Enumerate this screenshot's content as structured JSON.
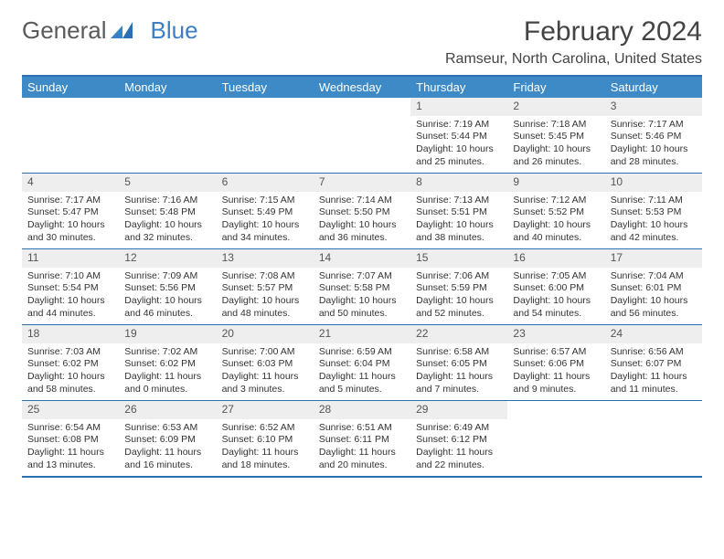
{
  "brand": {
    "part1": "General",
    "part2": "Blue"
  },
  "title": "February 2024",
  "location": "Ramseur, North Carolina, United States",
  "colors": {
    "header_bg": "#3d8ac7",
    "border": "#2d6fb3",
    "daynum_bg": "#eeeeee",
    "text": "#333333"
  },
  "day_headers": [
    "Sunday",
    "Monday",
    "Tuesday",
    "Wednesday",
    "Thursday",
    "Friday",
    "Saturday"
  ],
  "weeks": [
    [
      {
        "empty": true
      },
      {
        "empty": true
      },
      {
        "empty": true
      },
      {
        "empty": true
      },
      {
        "num": "1",
        "sunrise": "Sunrise: 7:19 AM",
        "sunset": "Sunset: 5:44 PM",
        "daylight": "Daylight: 10 hours and 25 minutes."
      },
      {
        "num": "2",
        "sunrise": "Sunrise: 7:18 AM",
        "sunset": "Sunset: 5:45 PM",
        "daylight": "Daylight: 10 hours and 26 minutes."
      },
      {
        "num": "3",
        "sunrise": "Sunrise: 7:17 AM",
        "sunset": "Sunset: 5:46 PM",
        "daylight": "Daylight: 10 hours and 28 minutes."
      }
    ],
    [
      {
        "num": "4",
        "sunrise": "Sunrise: 7:17 AM",
        "sunset": "Sunset: 5:47 PM",
        "daylight": "Daylight: 10 hours and 30 minutes."
      },
      {
        "num": "5",
        "sunrise": "Sunrise: 7:16 AM",
        "sunset": "Sunset: 5:48 PM",
        "daylight": "Daylight: 10 hours and 32 minutes."
      },
      {
        "num": "6",
        "sunrise": "Sunrise: 7:15 AM",
        "sunset": "Sunset: 5:49 PM",
        "daylight": "Daylight: 10 hours and 34 minutes."
      },
      {
        "num": "7",
        "sunrise": "Sunrise: 7:14 AM",
        "sunset": "Sunset: 5:50 PM",
        "daylight": "Daylight: 10 hours and 36 minutes."
      },
      {
        "num": "8",
        "sunrise": "Sunrise: 7:13 AM",
        "sunset": "Sunset: 5:51 PM",
        "daylight": "Daylight: 10 hours and 38 minutes."
      },
      {
        "num": "9",
        "sunrise": "Sunrise: 7:12 AM",
        "sunset": "Sunset: 5:52 PM",
        "daylight": "Daylight: 10 hours and 40 minutes."
      },
      {
        "num": "10",
        "sunrise": "Sunrise: 7:11 AM",
        "sunset": "Sunset: 5:53 PM",
        "daylight": "Daylight: 10 hours and 42 minutes."
      }
    ],
    [
      {
        "num": "11",
        "sunrise": "Sunrise: 7:10 AM",
        "sunset": "Sunset: 5:54 PM",
        "daylight": "Daylight: 10 hours and 44 minutes."
      },
      {
        "num": "12",
        "sunrise": "Sunrise: 7:09 AM",
        "sunset": "Sunset: 5:56 PM",
        "daylight": "Daylight: 10 hours and 46 minutes."
      },
      {
        "num": "13",
        "sunrise": "Sunrise: 7:08 AM",
        "sunset": "Sunset: 5:57 PM",
        "daylight": "Daylight: 10 hours and 48 minutes."
      },
      {
        "num": "14",
        "sunrise": "Sunrise: 7:07 AM",
        "sunset": "Sunset: 5:58 PM",
        "daylight": "Daylight: 10 hours and 50 minutes."
      },
      {
        "num": "15",
        "sunrise": "Sunrise: 7:06 AM",
        "sunset": "Sunset: 5:59 PM",
        "daylight": "Daylight: 10 hours and 52 minutes."
      },
      {
        "num": "16",
        "sunrise": "Sunrise: 7:05 AM",
        "sunset": "Sunset: 6:00 PM",
        "daylight": "Daylight: 10 hours and 54 minutes."
      },
      {
        "num": "17",
        "sunrise": "Sunrise: 7:04 AM",
        "sunset": "Sunset: 6:01 PM",
        "daylight": "Daylight: 10 hours and 56 minutes."
      }
    ],
    [
      {
        "num": "18",
        "sunrise": "Sunrise: 7:03 AM",
        "sunset": "Sunset: 6:02 PM",
        "daylight": "Daylight: 10 hours and 58 minutes."
      },
      {
        "num": "19",
        "sunrise": "Sunrise: 7:02 AM",
        "sunset": "Sunset: 6:02 PM",
        "daylight": "Daylight: 11 hours and 0 minutes."
      },
      {
        "num": "20",
        "sunrise": "Sunrise: 7:00 AM",
        "sunset": "Sunset: 6:03 PM",
        "daylight": "Daylight: 11 hours and 3 minutes."
      },
      {
        "num": "21",
        "sunrise": "Sunrise: 6:59 AM",
        "sunset": "Sunset: 6:04 PM",
        "daylight": "Daylight: 11 hours and 5 minutes."
      },
      {
        "num": "22",
        "sunrise": "Sunrise: 6:58 AM",
        "sunset": "Sunset: 6:05 PM",
        "daylight": "Daylight: 11 hours and 7 minutes."
      },
      {
        "num": "23",
        "sunrise": "Sunrise: 6:57 AM",
        "sunset": "Sunset: 6:06 PM",
        "daylight": "Daylight: 11 hours and 9 minutes."
      },
      {
        "num": "24",
        "sunrise": "Sunrise: 6:56 AM",
        "sunset": "Sunset: 6:07 PM",
        "daylight": "Daylight: 11 hours and 11 minutes."
      }
    ],
    [
      {
        "num": "25",
        "sunrise": "Sunrise: 6:54 AM",
        "sunset": "Sunset: 6:08 PM",
        "daylight": "Daylight: 11 hours and 13 minutes."
      },
      {
        "num": "26",
        "sunrise": "Sunrise: 6:53 AM",
        "sunset": "Sunset: 6:09 PM",
        "daylight": "Daylight: 11 hours and 16 minutes."
      },
      {
        "num": "27",
        "sunrise": "Sunrise: 6:52 AM",
        "sunset": "Sunset: 6:10 PM",
        "daylight": "Daylight: 11 hours and 18 minutes."
      },
      {
        "num": "28",
        "sunrise": "Sunrise: 6:51 AM",
        "sunset": "Sunset: 6:11 PM",
        "daylight": "Daylight: 11 hours and 20 minutes."
      },
      {
        "num": "29",
        "sunrise": "Sunrise: 6:49 AM",
        "sunset": "Sunset: 6:12 PM",
        "daylight": "Daylight: 11 hours and 22 minutes."
      },
      {
        "empty": true
      },
      {
        "empty": true
      }
    ]
  ]
}
